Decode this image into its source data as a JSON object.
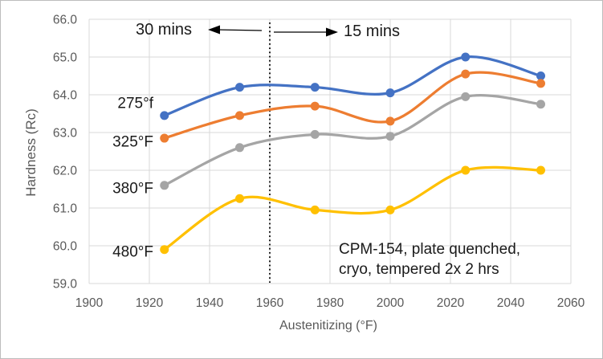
{
  "window": {
    "background": "#ffffff",
    "border_color": "#bdbdbd"
  },
  "chart_data": {
    "type": "line",
    "title": "",
    "xlabel": "Austenitizing (°F)",
    "ylabel": "Hardness (Rc)",
    "xlim": [
      1900,
      2060
    ],
    "ylim": [
      59.0,
      66.0
    ],
    "x_ticks": [
      "1900",
      "1920",
      "1940",
      "1960",
      "1980",
      "2000",
      "2020",
      "2040",
      "2060"
    ],
    "y_ticks": [
      "59.0",
      "60.0",
      "61.0",
      "62.0",
      "63.0",
      "64.0",
      "65.0",
      "66.0"
    ],
    "grid": true,
    "gridline_color": "#d9d9d9",
    "tick_label_color": "#595959",
    "x": [
      1925,
      1950,
      1975,
      2000,
      2025,
      2050
    ],
    "series": [
      {
        "name": "275°f",
        "color": "#4472C4",
        "values": [
          63.45,
          64.2,
          64.2,
          64.05,
          65.0,
          64.5
        ],
        "label_dy": -16
      },
      {
        "name": "325°F",
        "color": "#ED7D31",
        "values": [
          62.85,
          63.45,
          63.7,
          63.3,
          64.55,
          64.3
        ],
        "label_dy": 4
      },
      {
        "name": "380°F",
        "color": "#A5A5A5",
        "values": [
          61.6,
          62.6,
          62.95,
          62.9,
          63.95,
          63.75
        ],
        "label_dy": 3
      },
      {
        "name": "480°F",
        "color": "#FFC000",
        "values": [
          59.9,
          61.25,
          60.95,
          60.95,
          62.0,
          62.0
        ],
        "label_dy": 2
      }
    ],
    "annotations": {
      "left_region_label": "30 mins",
      "right_region_label": "15 mins",
      "divider_x": 1960,
      "divider_style": "dotted",
      "divider_color": "#000000",
      "note_line1": "CPM-154, plate quenched,",
      "note_line2": "cryo, tempered 2x 2 hrs"
    },
    "legend_position": "inline-left-of-first-point",
    "marker": "circle"
  }
}
